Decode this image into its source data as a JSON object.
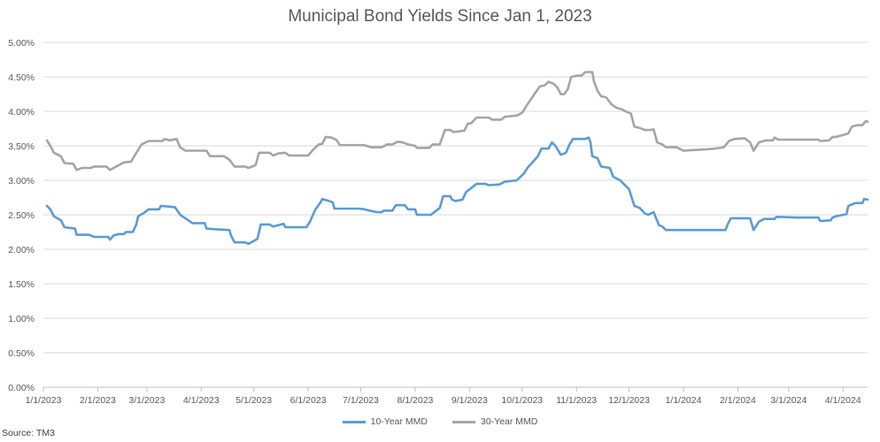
{
  "chart_data": {
    "type": "line",
    "title": "Municipal Bond Yields Since Jan 1, 2023",
    "source": "Source: TM3",
    "y_ticks": [
      "5.00%",
      "4.50%",
      "4.00%",
      "3.50%",
      "3.00%",
      "2.50%",
      "2.00%",
      "1.50%",
      "1.00%",
      "0.50%",
      "0.00%"
    ],
    "ylim": [
      0,
      5
    ],
    "x_ticks": [
      "1/1/2023",
      "2/1/2023",
      "3/1/2023",
      "4/1/2023",
      "5/1/2023",
      "6/1/2023",
      "7/1/2023",
      "8/1/2023",
      "9/1/2023",
      "10/1/2023",
      "11/1/2023",
      "12/1/2023",
      "1/1/2024",
      "2/1/2024",
      "3/1/2024",
      "4/1/2024"
    ],
    "x_range": [
      "2023-01-01",
      "2024-04-15"
    ],
    "grid": true,
    "legend_position": "bottom",
    "series": [
      {
        "name": "10-Year MMD",
        "color": "#5B9BD5",
        "points": [
          [
            "2023-01-03",
            2.63
          ],
          [
            "2023-01-05",
            2.58
          ],
          [
            "2023-01-07",
            2.48
          ],
          [
            "2023-01-11",
            2.42
          ],
          [
            "2023-01-13",
            2.32
          ],
          [
            "2023-01-19",
            2.3
          ],
          [
            "2023-01-20",
            2.21
          ],
          [
            "2023-01-27",
            2.21
          ],
          [
            "2023-01-30",
            2.18
          ],
          [
            "2023-02-07",
            2.18
          ],
          [
            "2023-02-08",
            2.14
          ],
          [
            "2023-02-10",
            2.2
          ],
          [
            "2023-02-13",
            2.22
          ],
          [
            "2023-02-16",
            2.22
          ],
          [
            "2023-02-17",
            2.25
          ],
          [
            "2023-02-21",
            2.25
          ],
          [
            "2023-02-23",
            2.36
          ],
          [
            "2023-02-24",
            2.48
          ],
          [
            "2023-02-27",
            2.52
          ],
          [
            "2023-03-02",
            2.58
          ],
          [
            "2023-03-08",
            2.58
          ],
          [
            "2023-03-09",
            2.63
          ],
          [
            "2023-03-13",
            2.62
          ],
          [
            "2023-03-17",
            2.61
          ],
          [
            "2023-03-20",
            2.5
          ],
          [
            "2023-03-23",
            2.45
          ],
          [
            "2023-03-27",
            2.38
          ],
          [
            "2023-03-30",
            2.38
          ],
          [
            "2023-04-03",
            2.38
          ],
          [
            "2023-04-04",
            2.3
          ],
          [
            "2023-04-10",
            2.29
          ],
          [
            "2023-04-17",
            2.28
          ],
          [
            "2023-04-18",
            2.2
          ],
          [
            "2023-04-20",
            2.1
          ],
          [
            "2023-04-26",
            2.1
          ],
          [
            "2023-04-28",
            2.08
          ],
          [
            "2023-05-03",
            2.15
          ],
          [
            "2023-05-05",
            2.36
          ],
          [
            "2023-05-10",
            2.36
          ],
          [
            "2023-05-12",
            2.33
          ],
          [
            "2023-05-15",
            2.35
          ],
          [
            "2023-05-18",
            2.37
          ],
          [
            "2023-05-19",
            2.32
          ],
          [
            "2023-05-31",
            2.32
          ],
          [
            "2023-06-02",
            2.4
          ],
          [
            "2023-06-05",
            2.57
          ],
          [
            "2023-06-08",
            2.68
          ],
          [
            "2023-06-09",
            2.73
          ],
          [
            "2023-06-13",
            2.7
          ],
          [
            "2023-06-15",
            2.68
          ],
          [
            "2023-06-16",
            2.59
          ],
          [
            "2023-06-30",
            2.59
          ],
          [
            "2023-07-03",
            2.58
          ],
          [
            "2023-07-06",
            2.56
          ],
          [
            "2023-07-10",
            2.54
          ],
          [
            "2023-07-13",
            2.54
          ],
          [
            "2023-07-14",
            2.56
          ],
          [
            "2023-07-19",
            2.56
          ],
          [
            "2023-07-21",
            2.64
          ],
          [
            "2023-07-26",
            2.64
          ],
          [
            "2023-07-28",
            2.58
          ],
          [
            "2023-08-01",
            2.58
          ],
          [
            "2023-08-02",
            2.5
          ],
          [
            "2023-08-10",
            2.5
          ],
          [
            "2023-08-15",
            2.6
          ],
          [
            "2023-08-17",
            2.77
          ],
          [
            "2023-08-21",
            2.77
          ],
          [
            "2023-08-22",
            2.72
          ],
          [
            "2023-08-24",
            2.7
          ],
          [
            "2023-08-28",
            2.72
          ],
          [
            "2023-08-30",
            2.83
          ],
          [
            "2023-09-05",
            2.95
          ],
          [
            "2023-09-10",
            2.95
          ],
          [
            "2023-09-12",
            2.93
          ],
          [
            "2023-09-18",
            2.94
          ],
          [
            "2023-09-21",
            2.98
          ],
          [
            "2023-09-28",
            3.0
          ],
          [
            "2023-10-02",
            3.1
          ],
          [
            "2023-10-04",
            3.18
          ],
          [
            "2023-10-10",
            3.35
          ],
          [
            "2023-10-12",
            3.46
          ],
          [
            "2023-10-16",
            3.46
          ],
          [
            "2023-10-18",
            3.55
          ],
          [
            "2023-10-20",
            3.5
          ],
          [
            "2023-10-23",
            3.37
          ],
          [
            "2023-10-26",
            3.4
          ],
          [
            "2023-10-28",
            3.52
          ],
          [
            "2023-10-30",
            3.6
          ],
          [
            "2023-11-06",
            3.6
          ],
          [
            "2023-11-08",
            3.62
          ],
          [
            "2023-11-09",
            3.55
          ],
          [
            "2023-11-10",
            3.35
          ],
          [
            "2023-11-13",
            3.32
          ],
          [
            "2023-11-15",
            3.2
          ],
          [
            "2023-11-20",
            3.18
          ],
          [
            "2023-11-22",
            3.05
          ],
          [
            "2023-11-26",
            3.0
          ],
          [
            "2023-11-29",
            2.92
          ],
          [
            "2023-12-01",
            2.87
          ],
          [
            "2023-12-04",
            2.63
          ],
          [
            "2023-12-07",
            2.6
          ],
          [
            "2023-12-10",
            2.52
          ],
          [
            "2023-12-12",
            2.5
          ],
          [
            "2023-12-15",
            2.54
          ],
          [
            "2023-12-18",
            2.35
          ],
          [
            "2023-12-20",
            2.33
          ],
          [
            "2023-12-22",
            2.28
          ],
          [
            "2024-01-25",
            2.28
          ],
          [
            "2024-01-26",
            2.35
          ],
          [
            "2024-01-28",
            2.45
          ],
          [
            "2024-02-05",
            2.45
          ],
          [
            "2024-02-08",
            2.45
          ],
          [
            "2024-02-10",
            2.28
          ],
          [
            "2024-02-13",
            2.4
          ],
          [
            "2024-02-16",
            2.44
          ],
          [
            "2024-02-22",
            2.44
          ],
          [
            "2024-02-23",
            2.47
          ],
          [
            "2024-03-06",
            2.46
          ],
          [
            "2024-03-18",
            2.46
          ],
          [
            "2024-03-19",
            2.41
          ],
          [
            "2024-03-25",
            2.42
          ],
          [
            "2024-03-26",
            2.46
          ],
          [
            "2024-03-28",
            2.48
          ],
          [
            "2024-04-01",
            2.5
          ],
          [
            "2024-04-03",
            2.51
          ],
          [
            "2024-04-04",
            2.63
          ],
          [
            "2024-04-08",
            2.67
          ],
          [
            "2024-04-12",
            2.67
          ],
          [
            "2024-04-13",
            2.73
          ],
          [
            "2024-04-15",
            2.72
          ]
        ]
      },
      {
        "name": "30-Year MMD",
        "color": "#A5A5A5",
        "points": [
          [
            "2023-01-03",
            3.58
          ],
          [
            "2023-01-05",
            3.5
          ],
          [
            "2023-01-07",
            3.4
          ],
          [
            "2023-01-11",
            3.35
          ],
          [
            "2023-01-13",
            3.25
          ],
          [
            "2023-01-18",
            3.24
          ],
          [
            "2023-01-20",
            3.15
          ],
          [
            "2023-01-23",
            3.18
          ],
          [
            "2023-01-28",
            3.18
          ],
          [
            "2023-01-30",
            3.2
          ],
          [
            "2023-02-06",
            3.2
          ],
          [
            "2023-02-08",
            3.15
          ],
          [
            "2023-02-10",
            3.18
          ],
          [
            "2023-02-13",
            3.22
          ],
          [
            "2023-02-16",
            3.26
          ],
          [
            "2023-02-20",
            3.27
          ],
          [
            "2023-02-23",
            3.4
          ],
          [
            "2023-02-26",
            3.52
          ],
          [
            "2023-03-02",
            3.57
          ],
          [
            "2023-03-10",
            3.57
          ],
          [
            "2023-03-11",
            3.6
          ],
          [
            "2023-03-14",
            3.58
          ],
          [
            "2023-03-18",
            3.6
          ],
          [
            "2023-03-20",
            3.48
          ],
          [
            "2023-03-23",
            3.43
          ],
          [
            "2023-04-04",
            3.43
          ],
          [
            "2023-04-06",
            3.35
          ],
          [
            "2023-04-14",
            3.35
          ],
          [
            "2023-04-17",
            3.3
          ],
          [
            "2023-04-20",
            3.2
          ],
          [
            "2023-04-26",
            3.2
          ],
          [
            "2023-04-28",
            3.18
          ],
          [
            "2023-05-02",
            3.22
          ],
          [
            "2023-05-04",
            3.4
          ],
          [
            "2023-05-10",
            3.4
          ],
          [
            "2023-05-12",
            3.36
          ],
          [
            "2023-05-15",
            3.39
          ],
          [
            "2023-05-19",
            3.4
          ],
          [
            "2023-05-21",
            3.36
          ],
          [
            "2023-06-01",
            3.36
          ],
          [
            "2023-06-04",
            3.45
          ],
          [
            "2023-06-07",
            3.52
          ],
          [
            "2023-06-09",
            3.53
          ],
          [
            "2023-06-11",
            3.63
          ],
          [
            "2023-06-14",
            3.62
          ],
          [
            "2023-06-17",
            3.59
          ],
          [
            "2023-06-19",
            3.51
          ],
          [
            "2023-07-03",
            3.51
          ],
          [
            "2023-07-07",
            3.48
          ],
          [
            "2023-07-13",
            3.48
          ],
          [
            "2023-07-16",
            3.52
          ],
          [
            "2023-07-19",
            3.52
          ],
          [
            "2023-07-22",
            3.56
          ],
          [
            "2023-07-25",
            3.55
          ],
          [
            "2023-07-28",
            3.52
          ],
          [
            "2023-08-01",
            3.5
          ],
          [
            "2023-08-02",
            3.47
          ],
          [
            "2023-08-09",
            3.47
          ],
          [
            "2023-08-11",
            3.52
          ],
          [
            "2023-08-15",
            3.52
          ],
          [
            "2023-08-18",
            3.73
          ],
          [
            "2023-08-21",
            3.73
          ],
          [
            "2023-08-23",
            3.7
          ],
          [
            "2023-08-29",
            3.72
          ],
          [
            "2023-08-31",
            3.82
          ],
          [
            "2023-09-02",
            3.83
          ],
          [
            "2023-09-05",
            3.91
          ],
          [
            "2023-09-12",
            3.91
          ],
          [
            "2023-09-14",
            3.88
          ],
          [
            "2023-09-19",
            3.88
          ],
          [
            "2023-09-21",
            3.92
          ],
          [
            "2023-09-24",
            3.93
          ],
          [
            "2023-09-28",
            3.94
          ],
          [
            "2023-10-01",
            3.98
          ],
          [
            "2023-10-04",
            4.1
          ],
          [
            "2023-10-08",
            4.25
          ],
          [
            "2023-10-11",
            4.36
          ],
          [
            "2023-10-14",
            4.38
          ],
          [
            "2023-10-16",
            4.43
          ],
          [
            "2023-10-19",
            4.4
          ],
          [
            "2023-10-21",
            4.35
          ],
          [
            "2023-10-23",
            4.25
          ],
          [
            "2023-10-25",
            4.25
          ],
          [
            "2023-10-27",
            4.32
          ],
          [
            "2023-10-29",
            4.5
          ],
          [
            "2023-11-02",
            4.52
          ],
          [
            "2023-11-04",
            4.52
          ],
          [
            "2023-11-06",
            4.57
          ],
          [
            "2023-11-10",
            4.57
          ],
          [
            "2023-11-11",
            4.43
          ],
          [
            "2023-11-13",
            4.3
          ],
          [
            "2023-11-15",
            4.22
          ],
          [
            "2023-11-18",
            4.2
          ],
          [
            "2023-11-21",
            4.1
          ],
          [
            "2023-11-24",
            4.05
          ],
          [
            "2023-11-27",
            4.03
          ],
          [
            "2023-11-29",
            4.0
          ],
          [
            "2023-12-02",
            3.97
          ],
          [
            "2023-12-04",
            3.78
          ],
          [
            "2023-12-07",
            3.76
          ],
          [
            "2023-12-10",
            3.73
          ],
          [
            "2023-12-13",
            3.73
          ],
          [
            "2023-12-15",
            3.74
          ],
          [
            "2023-12-17",
            3.55
          ],
          [
            "2023-12-20",
            3.52
          ],
          [
            "2023-12-22",
            3.48
          ],
          [
            "2023-12-28",
            3.48
          ],
          [
            "2024-01-01",
            3.43
          ],
          [
            "2024-01-07",
            3.44
          ],
          [
            "2024-01-14",
            3.45
          ],
          [
            "2024-01-19",
            3.46
          ],
          [
            "2024-01-24",
            3.48
          ],
          [
            "2024-01-27",
            3.57
          ],
          [
            "2024-01-30",
            3.6
          ],
          [
            "2024-02-05",
            3.61
          ],
          [
            "2024-02-08",
            3.55
          ],
          [
            "2024-02-10",
            3.43
          ],
          [
            "2024-02-13",
            3.55
          ],
          [
            "2024-02-17",
            3.58
          ],
          [
            "2024-02-21",
            3.58
          ],
          [
            "2024-02-22",
            3.62
          ],
          [
            "2024-02-24",
            3.59
          ],
          [
            "2024-03-06",
            3.59
          ],
          [
            "2024-03-18",
            3.59
          ],
          [
            "2024-03-19",
            3.57
          ],
          [
            "2024-03-24",
            3.58
          ],
          [
            "2024-03-26",
            3.63
          ],
          [
            "2024-03-28",
            3.63
          ],
          [
            "2024-03-31",
            3.65
          ],
          [
            "2024-04-04",
            3.68
          ],
          [
            "2024-04-06",
            3.78
          ],
          [
            "2024-04-09",
            3.8
          ],
          [
            "2024-04-12",
            3.8
          ],
          [
            "2024-04-14",
            3.86
          ],
          [
            "2024-04-15",
            3.85
          ]
        ]
      }
    ]
  }
}
